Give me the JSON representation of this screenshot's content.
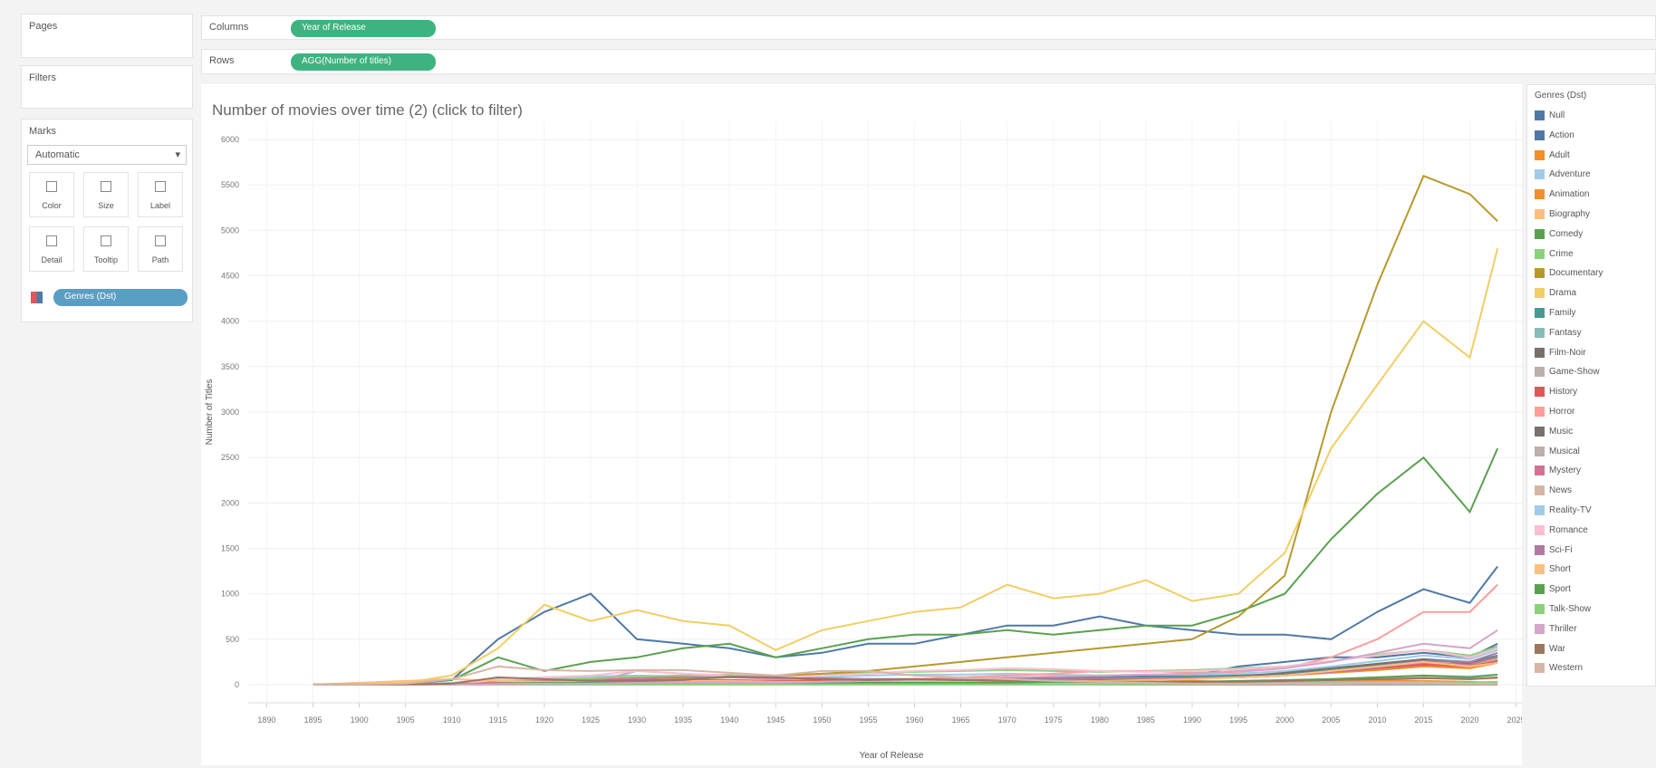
{
  "ui": {
    "pages": "Pages",
    "filters": "Filters",
    "marks": "Marks",
    "marks_type": "Automatic",
    "mark_buttons": [
      "Color",
      "Size",
      "Label",
      "Detail",
      "Tooltip",
      "Path"
    ],
    "marks_pill": "Genres (Dst)",
    "columns_label": "Columns",
    "columns_pill": "Year of Release",
    "rows_label": "Rows",
    "rows_pill": "AGG(Number of titles)"
  },
  "chart_data": {
    "type": "line",
    "title": "Number of movies over time (2) (click to filter)",
    "x_label": "Year of Release",
    "y_label": "Number of Titles",
    "legend_title": "Genres (Dst)",
    "legend": "right",
    "grid": true,
    "xlim": [
      1888,
      2027
    ],
    "xticks": [
      1890,
      1895,
      1900,
      1905,
      1910,
      1915,
      1920,
      1925,
      1930,
      1935,
      1940,
      1945,
      1950,
      1955,
      1960,
      1965,
      1970,
      1975,
      1980,
      1985,
      1990,
      1995,
      2000,
      2005,
      2010,
      2015,
      2020,
      2025
    ],
    "ylim": [
      -200,
      6200
    ],
    "yticks": [
      0,
      500,
      1000,
      1500,
      2000,
      2500,
      3000,
      3500,
      4000,
      4500,
      5000,
      5500,
      6000
    ],
    "x": [
      1895,
      1900,
      1905,
      1910,
      1915,
      1920,
      1925,
      1930,
      1935,
      1940,
      1945,
      1950,
      1955,
      1960,
      1965,
      1970,
      1975,
      1980,
      1985,
      1990,
      1995,
      2000,
      2005,
      2010,
      2015,
      2020,
      2023
    ],
    "series": [
      {
        "name": "Null",
        "color": "#4e79a7",
        "values": [
          0,
          0,
          0,
          0,
          5,
          10,
          10,
          10,
          10,
          10,
          10,
          20,
          30,
          40,
          50,
          60,
          70,
          80,
          90,
          100,
          200,
          250,
          300,
          300,
          350,
          300,
          450
        ]
      },
      {
        "name": "Action",
        "color": "#4e79a7",
        "values": [
          0,
          5,
          10,
          50,
          500,
          800,
          1000,
          500,
          450,
          400,
          300,
          350,
          450,
          450,
          550,
          650,
          650,
          750,
          650,
          600,
          550,
          550,
          500,
          800,
          1050,
          900,
          1300
        ]
      },
      {
        "name": "Adult",
        "color": "#f28e2b",
        "values": [
          0,
          0,
          0,
          0,
          0,
          0,
          0,
          0,
          0,
          0,
          0,
          0,
          0,
          5,
          20,
          60,
          90,
          80,
          60,
          40,
          30,
          30,
          40,
          50,
          40,
          30,
          20
        ]
      },
      {
        "name": "Adventure",
        "color": "#a0cbe8",
        "values": [
          0,
          0,
          5,
          20,
          60,
          80,
          90,
          100,
          90,
          80,
          60,
          80,
          100,
          110,
          110,
          120,
          110,
          100,
          110,
          110,
          120,
          150,
          200,
          260,
          320,
          280,
          380
        ]
      },
      {
        "name": "Animation",
        "color": "#f28e2b",
        "values": [
          0,
          0,
          0,
          2,
          10,
          20,
          30,
          40,
          40,
          30,
          30,
          40,
          40,
          40,
          50,
          50,
          50,
          60,
          60,
          70,
          80,
          100,
          130,
          160,
          200,
          180,
          240
        ]
      },
      {
        "name": "Biography",
        "color": "#ffbe7d",
        "values": [
          0,
          0,
          0,
          2,
          10,
          15,
          20,
          25,
          30,
          30,
          25,
          30,
          30,
          30,
          35,
          40,
          40,
          45,
          50,
          60,
          80,
          110,
          150,
          200,
          250,
          220,
          280
        ]
      },
      {
        "name": "Comedy",
        "color": "#59a14f",
        "values": [
          0,
          2,
          10,
          50,
          300,
          150,
          250,
          300,
          400,
          450,
          300,
          400,
          500,
          550,
          550,
          600,
          550,
          600,
          650,
          650,
          800,
          1000,
          1600,
          2100,
          2500,
          1900,
          2600
        ]
      },
      {
        "name": "Crime",
        "color": "#8cd17d",
        "values": [
          0,
          0,
          2,
          10,
          40,
          60,
          70,
          90,
          100,
          110,
          80,
          120,
          130,
          140,
          150,
          160,
          150,
          140,
          150,
          160,
          180,
          200,
          260,
          330,
          380,
          320,
          420
        ]
      },
      {
        "name": "Documentary",
        "color": "#b6992d",
        "values": [
          0,
          0,
          5,
          10,
          20,
          30,
          40,
          50,
          60,
          80,
          100,
          120,
          150,
          200,
          250,
          300,
          350,
          400,
          450,
          500,
          750,
          1200,
          3000,
          4400,
          5600,
          5400,
          5100
        ]
      },
      {
        "name": "Drama",
        "color": "#f1ce63",
        "values": [
          0,
          5,
          20,
          100,
          400,
          880,
          700,
          820,
          700,
          650,
          380,
          600,
          700,
          800,
          850,
          1100,
          950,
          1000,
          1150,
          920,
          1000,
          1450,
          2600,
          3300,
          4000,
          3600,
          4800
        ]
      },
      {
        "name": "Family",
        "color": "#499894",
        "values": [
          0,
          0,
          0,
          5,
          20,
          30,
          40,
          50,
          50,
          50,
          40,
          50,
          60,
          60,
          70,
          70,
          70,
          80,
          80,
          90,
          100,
          120,
          160,
          220,
          280,
          250,
          320
        ]
      },
      {
        "name": "Fantasy",
        "color": "#86bcb6",
        "values": [
          0,
          0,
          5,
          10,
          20,
          30,
          30,
          30,
          30,
          30,
          20,
          30,
          30,
          40,
          40,
          50,
          50,
          60,
          60,
          70,
          80,
          100,
          140,
          180,
          220,
          200,
          270
        ]
      },
      {
        "name": "Film-Noir",
        "color": "#79706e",
        "values": [
          0,
          0,
          0,
          0,
          0,
          0,
          0,
          0,
          5,
          20,
          40,
          30,
          10,
          0,
          0,
          0,
          0,
          0,
          0,
          0,
          0,
          0,
          0,
          0,
          0,
          0,
          0
        ]
      },
      {
        "name": "Game-Show",
        "color": "#bab0ac",
        "values": [
          0,
          0,
          0,
          0,
          0,
          0,
          0,
          0,
          0,
          0,
          0,
          0,
          2,
          2,
          2,
          2,
          2,
          2,
          2,
          2,
          2,
          3,
          3,
          3,
          3,
          3,
          3
        ]
      },
      {
        "name": "History",
        "color": "#e15759",
        "values": [
          0,
          0,
          2,
          10,
          30,
          40,
          40,
          40,
          40,
          40,
          40,
          50,
          50,
          60,
          60,
          60,
          60,
          60,
          60,
          70,
          80,
          100,
          140,
          180,
          220,
          200,
          260
        ]
      },
      {
        "name": "Horror",
        "color": "#ff9d9a",
        "values": [
          0,
          0,
          0,
          5,
          10,
          20,
          20,
          30,
          30,
          30,
          20,
          30,
          50,
          60,
          80,
          100,
          120,
          150,
          150,
          130,
          140,
          180,
          300,
          500,
          800,
          800,
          1100
        ]
      },
      {
        "name": "Music",
        "color": "#79706e",
        "values": [
          0,
          0,
          0,
          2,
          5,
          10,
          20,
          40,
          40,
          30,
          30,
          30,
          30,
          30,
          40,
          40,
          40,
          50,
          50,
          60,
          90,
          130,
          180,
          230,
          280,
          230,
          300
        ]
      },
      {
        "name": "Musical",
        "color": "#bab0ac",
        "values": [
          0,
          0,
          0,
          0,
          2,
          5,
          20,
          150,
          120,
          100,
          90,
          70,
          60,
          40,
          30,
          30,
          20,
          20,
          20,
          20,
          20,
          20,
          30,
          30,
          30,
          20,
          30
        ]
      },
      {
        "name": "Mystery",
        "color": "#d37295",
        "values": [
          0,
          0,
          2,
          10,
          30,
          40,
          50,
          70,
          80,
          80,
          70,
          70,
          60,
          60,
          60,
          60,
          60,
          70,
          70,
          70,
          80,
          100,
          140,
          190,
          240,
          220,
          300
        ]
      },
      {
        "name": "News",
        "color": "#d7b5a6",
        "values": [
          0,
          0,
          0,
          0,
          0,
          2,
          5,
          10,
          10,
          20,
          20,
          10,
          10,
          10,
          10,
          10,
          10,
          20,
          20,
          20,
          30,
          40,
          60,
          70,
          80,
          60,
          70
        ]
      },
      {
        "name": "Reality-TV",
        "color": "#a0cbe8",
        "values": [
          0,
          0,
          0,
          0,
          0,
          0,
          0,
          0,
          0,
          0,
          0,
          0,
          0,
          0,
          0,
          0,
          0,
          2,
          5,
          10,
          20,
          40,
          60,
          80,
          100,
          90,
          110
        ]
      },
      {
        "name": "Romance",
        "color": "#fabfd2",
        "values": [
          0,
          0,
          2,
          10,
          50,
          80,
          100,
          150,
          120,
          100,
          80,
          100,
          120,
          150,
          160,
          180,
          170,
          150,
          140,
          150,
          170,
          200,
          260,
          320,
          380,
          300,
          400
        ]
      },
      {
        "name": "Sci-Fi",
        "color": "#b07aa1",
        "values": [
          0,
          0,
          2,
          5,
          10,
          10,
          10,
          10,
          10,
          10,
          10,
          30,
          60,
          60,
          50,
          60,
          60,
          70,
          70,
          70,
          80,
          100,
          150,
          200,
          260,
          250,
          350
        ]
      },
      {
        "name": "Short",
        "color": "#ffbe7d",
        "values": [
          0,
          20,
          40,
          60,
          40,
          30,
          30,
          40,
          40,
          40,
          30,
          30,
          30,
          30,
          30,
          30,
          40,
          40,
          50,
          60,
          80,
          100,
          150,
          200,
          250,
          200,
          240
        ]
      },
      {
        "name": "Sport",
        "color": "#59a14f",
        "values": [
          0,
          0,
          2,
          5,
          10,
          20,
          20,
          20,
          20,
          20,
          20,
          20,
          20,
          20,
          20,
          20,
          30,
          30,
          30,
          30,
          40,
          50,
          60,
          80,
          100,
          80,
          110
        ]
      },
      {
        "name": "Talk-Show",
        "color": "#8cd17d",
        "values": [
          0,
          0,
          0,
          0,
          0,
          0,
          0,
          0,
          0,
          0,
          0,
          0,
          0,
          2,
          2,
          2,
          2,
          2,
          5,
          5,
          10,
          10,
          20,
          20,
          30,
          20,
          30
        ]
      },
      {
        "name": "Thriller",
        "color": "#d4a6c8",
        "values": [
          0,
          0,
          0,
          0,
          5,
          10,
          10,
          20,
          20,
          20,
          20,
          30,
          40,
          50,
          60,
          80,
          90,
          100,
          110,
          120,
          150,
          180,
          250,
          350,
          450,
          400,
          600
        ]
      },
      {
        "name": "War",
        "color": "#9d7660",
        "values": [
          0,
          0,
          2,
          10,
          80,
          60,
          40,
          40,
          50,
          90,
          80,
          60,
          50,
          60,
          50,
          40,
          40,
          30,
          30,
          30,
          30,
          40,
          50,
          60,
          70,
          60,
          80
        ]
      },
      {
        "name": "Western",
        "color": "#d7b5a6",
        "values": [
          0,
          2,
          10,
          60,
          200,
          160,
          150,
          160,
          160,
          130,
          100,
          150,
          150,
          100,
          80,
          60,
          40,
          30,
          20,
          10,
          10,
          10,
          10,
          20,
          20,
          10,
          10
        ]
      }
    ]
  }
}
